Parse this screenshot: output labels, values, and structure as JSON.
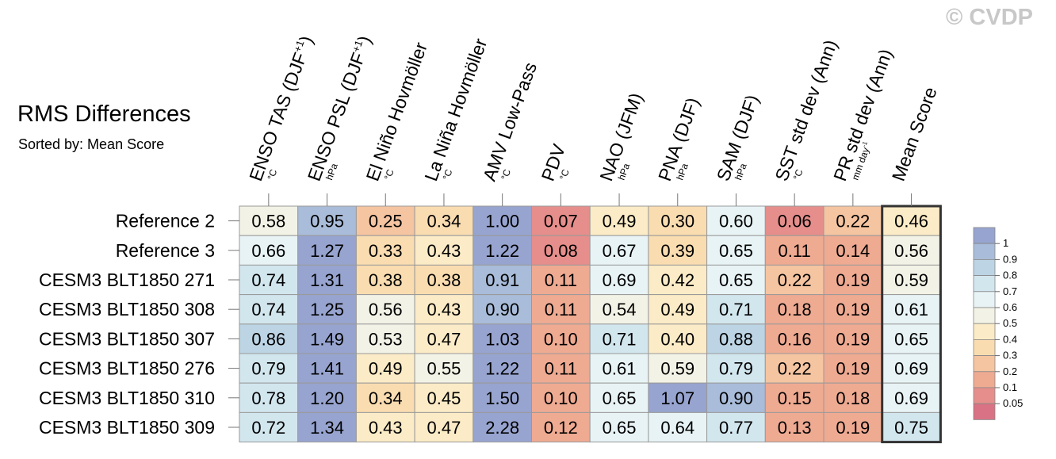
{
  "watermark": "© CVDP",
  "chart_data": {
    "type": "heatmap",
    "title": "RMS Differences",
    "subtitle": "Sorted by: Mean Score",
    "columns": [
      {
        "label": "ENSO TAS (DJF",
        "sup": "+1",
        "close": ")",
        "unit": "°C"
      },
      {
        "label": "ENSO PSL (DJF",
        "sup": "+1",
        "close": ")",
        "unit": "hPa"
      },
      {
        "label": "El Niño Hovmöller",
        "unit": "°C"
      },
      {
        "label": "La Niña Hovmöller",
        "unit": "°C"
      },
      {
        "label": "AMV Low-Pass",
        "unit": "°C"
      },
      {
        "label": "PDV",
        "unit": "°C"
      },
      {
        "label": "NAO (JFM)",
        "unit": "hPa"
      },
      {
        "label": "PNA (DJF)",
        "unit": "hPa"
      },
      {
        "label": "SAM (DJF)",
        "unit": "hPa"
      },
      {
        "label": "SST std dev (Ann)",
        "unit": "°C"
      },
      {
        "label": "PR std dev (Ann)",
        "unit": "mm day",
        "unit_sup": "-1"
      },
      {
        "label": "Mean Score",
        "unit": ""
      }
    ],
    "rows": [
      {
        "label": "Reference 2",
        "values": [
          "0.58",
          "0.95",
          "0.25",
          "0.34",
          "1.00",
          "0.07",
          "0.49",
          "0.30",
          "0.60",
          "0.06",
          "0.22",
          "0.46"
        ]
      },
      {
        "label": "Reference 3",
        "values": [
          "0.66",
          "1.27",
          "0.33",
          "0.43",
          "1.22",
          "0.08",
          "0.67",
          "0.39",
          "0.65",
          "0.11",
          "0.14",
          "0.56"
        ]
      },
      {
        "label": "CESM3 BLT1850 271",
        "values": [
          "0.74",
          "1.31",
          "0.38",
          "0.38",
          "0.91",
          "0.11",
          "0.69",
          "0.42",
          "0.65",
          "0.22",
          "0.19",
          "0.59"
        ]
      },
      {
        "label": "CESM3 BLT1850 308",
        "values": [
          "0.74",
          "1.25",
          "0.56",
          "0.43",
          "0.90",
          "0.11",
          "0.54",
          "0.49",
          "0.71",
          "0.18",
          "0.19",
          "0.61"
        ]
      },
      {
        "label": "CESM3 BLT1850 307",
        "values": [
          "0.86",
          "1.49",
          "0.53",
          "0.47",
          "1.03",
          "0.10",
          "0.71",
          "0.40",
          "0.88",
          "0.16",
          "0.19",
          "0.65"
        ]
      },
      {
        "label": "CESM3 BLT1850 276",
        "values": [
          "0.79",
          "1.41",
          "0.49",
          "0.55",
          "1.22",
          "0.11",
          "0.61",
          "0.59",
          "0.79",
          "0.22",
          "0.19",
          "0.69"
        ]
      },
      {
        "label": "CESM3 BLT1850 310",
        "values": [
          "0.78",
          "1.20",
          "0.34",
          "0.45",
          "1.50",
          "0.10",
          "0.65",
          "1.07",
          "0.90",
          "0.15",
          "0.18",
          "0.69"
        ]
      },
      {
        "label": "CESM3 BLT1850 309",
        "values": [
          "0.72",
          "1.34",
          "0.43",
          "0.47",
          "2.28",
          "0.12",
          "0.65",
          "0.64",
          "0.77",
          "0.13",
          "0.19",
          "0.75"
        ]
      }
    ],
    "colorbar": {
      "labels": [
        "1",
        "0.9",
        "0.8",
        "0.7",
        "0.6",
        "0.5",
        "0.4",
        "0.3",
        "0.2",
        "0.1",
        "0.05"
      ],
      "colors": [
        "#97a4cf",
        "#a9bcd9",
        "#bcd4e4",
        "#d2e6ee",
        "#e8f3f5",
        "#f2f2e6",
        "#fbebc6",
        "#f9dcb0",
        "#f5c4a1",
        "#efaa92",
        "#e58e8b",
        "#d97285"
      ]
    },
    "highlight_column": "Mean Score"
  }
}
